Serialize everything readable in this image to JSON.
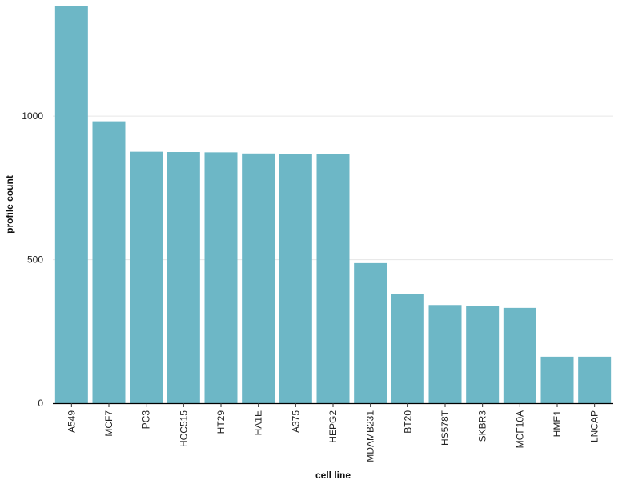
{
  "chart_data": {
    "type": "bar",
    "title": "",
    "xlabel": "cell line",
    "ylabel": "profile count",
    "categories": [
      "A549",
      "MCF7",
      "PC3",
      "HCC515",
      "HT29",
      "HA1E",
      "A375",
      "HEPG2",
      "MDAMB231",
      "BT20",
      "HS578T",
      "SKBR3",
      "MCF10A",
      "HME1",
      "LNCAP"
    ],
    "values": [
      1385,
      982,
      876,
      875,
      874,
      870,
      869,
      868,
      488,
      380,
      342,
      339,
      332,
      162,
      162
    ],
    "ylim": [
      0,
      1385
    ],
    "yticks": [
      0,
      500,
      1000
    ],
    "grid": true,
    "legend": "none",
    "bar_color": "#6db7c6",
    "grid_color": "#e6e6e6",
    "axis_color": "#000000"
  }
}
